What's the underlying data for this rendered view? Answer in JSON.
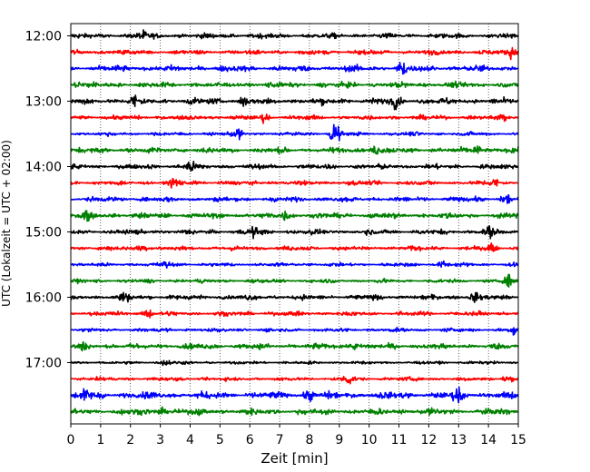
{
  "chart_data": {
    "type": "line",
    "title": "",
    "xlabel": "Zeit  [min]",
    "ylabel": "UTC (Lokalzeit = UTC + 02:00)",
    "xlim": [
      0,
      15
    ],
    "x_ticks": [
      "0",
      "1",
      "2",
      "3",
      "4",
      "5",
      "6",
      "7",
      "8",
      "9",
      "10",
      "11",
      "12",
      "13",
      "14",
      "15"
    ],
    "y_tick_labels": [
      "12:00",
      "13:00",
      "14:00",
      "15:00",
      "16:00",
      "17:00"
    ],
    "grid": "vertical dotted lines at each minute",
    "trace_interval_min": 15,
    "trace_start_utc": "12:00",
    "trace_color_cycle": [
      "#000000",
      "#ff0000",
      "#0000ff",
      "#008000"
    ],
    "traces": [
      {
        "start": "12:00",
        "color": "#000000",
        "amplitude": 0.2,
        "events": [
          {
            "t": 2.4,
            "amp": 0.4
          }
        ]
      },
      {
        "start": "12:15",
        "color": "#ff0000",
        "amplitude": 0.2,
        "events": [
          {
            "t": 14.8,
            "amp": 0.45
          }
        ]
      },
      {
        "start": "12:30",
        "color": "#0000ff",
        "amplitude": 0.25,
        "events": [
          {
            "t": 11.1,
            "amp": 0.6
          }
        ]
      },
      {
        "start": "12:45",
        "color": "#008000",
        "amplitude": 0.22,
        "events": [
          {
            "t": 0.3,
            "amp": 0.4
          }
        ]
      },
      {
        "start": "13:00",
        "color": "#000000",
        "amplitude": 0.25,
        "events": [
          {
            "t": 2.1,
            "amp": 0.45
          },
          {
            "t": 5.8,
            "amp": 0.4
          },
          {
            "t": 10.9,
            "amp": 0.45
          }
        ]
      },
      {
        "start": "13:15",
        "color": "#ff0000",
        "amplitude": 0.18,
        "events": [
          {
            "t": 6.5,
            "amp": 0.3
          },
          {
            "t": 14.5,
            "amp": 0.4
          }
        ]
      },
      {
        "start": "13:30",
        "color": "#0000ff",
        "amplitude": 0.15,
        "events": [
          {
            "t": 5.6,
            "amp": 0.4
          },
          {
            "t": 8.85,
            "amp": 1.2
          }
        ]
      },
      {
        "start": "13:45",
        "color": "#008000",
        "amplitude": 0.22,
        "events": [
          {
            "t": 10.2,
            "amp": 0.4
          },
          {
            "t": 13.6,
            "amp": 0.45
          }
        ]
      },
      {
        "start": "14:00",
        "color": "#000000",
        "amplitude": 0.2,
        "events": [
          {
            "t": 4.0,
            "amp": 0.5
          }
        ]
      },
      {
        "start": "14:15",
        "color": "#ff0000",
        "amplitude": 0.18,
        "events": [
          {
            "t": 3.5,
            "amp": 0.5
          },
          {
            "t": 14.2,
            "amp": 0.4
          }
        ]
      },
      {
        "start": "14:30",
        "color": "#0000ff",
        "amplitude": 0.2,
        "events": [
          {
            "t": 14.6,
            "amp": 0.45
          }
        ]
      },
      {
        "start": "14:45",
        "color": "#008000",
        "amplitude": 0.22,
        "events": [
          {
            "t": 0.5,
            "amp": 0.4
          },
          {
            "t": 7.2,
            "amp": 0.4
          }
        ]
      },
      {
        "start": "15:00",
        "color": "#000000",
        "amplitude": 0.2,
        "events": [
          {
            "t": 6.1,
            "amp": 0.4
          },
          {
            "t": 14.0,
            "amp": 0.4
          }
        ]
      },
      {
        "start": "15:15",
        "color": "#ff0000",
        "amplitude": 0.18,
        "events": [
          {
            "t": 2.4,
            "amp": 0.4
          },
          {
            "t": 14.1,
            "amp": 0.4
          }
        ]
      },
      {
        "start": "15:30",
        "color": "#0000ff",
        "amplitude": 0.15,
        "events": [
          {
            "t": 3.2,
            "amp": 0.3
          },
          {
            "t": 12.5,
            "amp": 0.3
          }
        ]
      },
      {
        "start": "15:45",
        "color": "#008000",
        "amplitude": 0.15,
        "events": [
          {
            "t": 14.7,
            "amp": 0.45
          }
        ]
      },
      {
        "start": "16:00",
        "color": "#000000",
        "amplitude": 0.2,
        "events": [
          {
            "t": 1.8,
            "amp": 0.4
          },
          {
            "t": 13.5,
            "amp": 0.35
          }
        ]
      },
      {
        "start": "16:15",
        "color": "#ff0000",
        "amplitude": 0.18,
        "events": [
          {
            "t": 2.6,
            "amp": 0.4
          }
        ]
      },
      {
        "start": "16:30",
        "color": "#0000ff",
        "amplitude": 0.15,
        "events": [
          {
            "t": 14.9,
            "amp": 0.4
          }
        ]
      },
      {
        "start": "16:45",
        "color": "#008000",
        "amplitude": 0.22,
        "events": [
          {
            "t": 0.4,
            "amp": 0.45
          },
          {
            "t": 9.5,
            "amp": 0.35
          }
        ]
      },
      {
        "start": "17:00",
        "color": "#000000",
        "amplitude": 0.12,
        "events": [
          {
            "t": 3.2,
            "amp": 0.3
          }
        ]
      },
      {
        "start": "17:15",
        "color": "#ff0000",
        "amplitude": 0.15,
        "events": [
          {
            "t": 9.3,
            "amp": 0.5
          },
          {
            "t": 14.6,
            "amp": 0.35
          }
        ]
      },
      {
        "start": "17:30",
        "color": "#0000ff",
        "amplitude": 0.28,
        "events": [
          {
            "t": 0.5,
            "amp": 0.4
          },
          {
            "t": 8.0,
            "amp": 0.4
          },
          {
            "t": 13.0,
            "amp": 0.45
          }
        ]
      },
      {
        "start": "17:45",
        "color": "#008000",
        "amplitude": 0.25,
        "events": [
          {
            "t": 3.0,
            "amp": 0.35
          }
        ]
      }
    ]
  }
}
